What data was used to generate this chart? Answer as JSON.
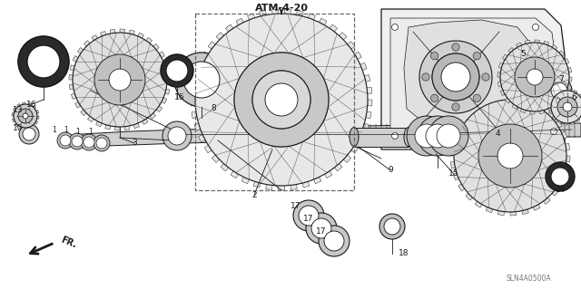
{
  "bg_color": "#ffffff",
  "fig_width": 6.4,
  "fig_height": 3.19,
  "title": "ATM-4-20",
  "watermark": "SLN4A0500A",
  "lc": "#1a1a1a",
  "lc_light": "#555555"
}
